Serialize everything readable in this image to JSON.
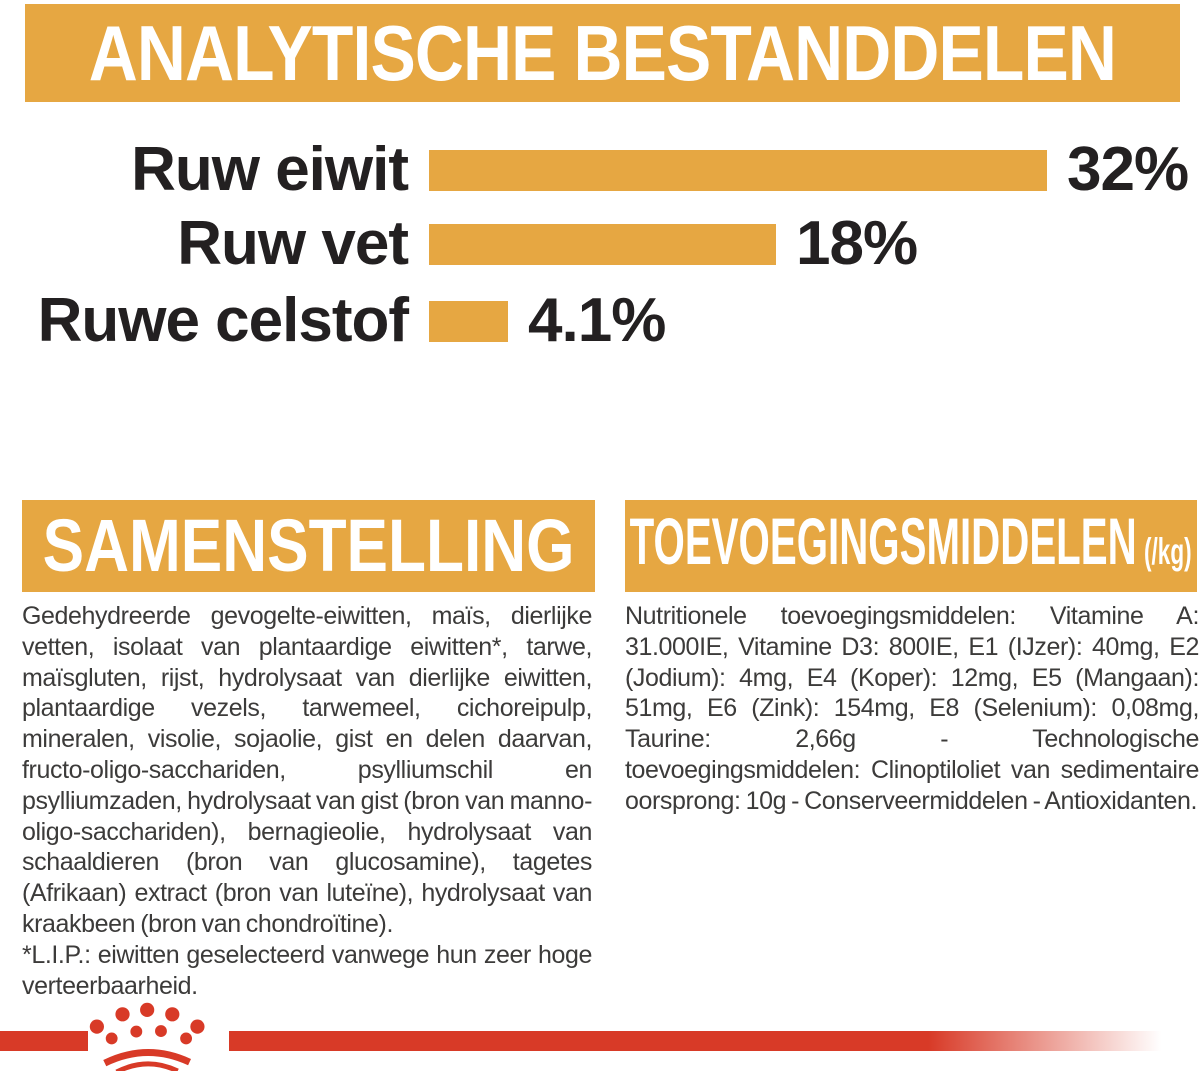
{
  "colors": {
    "gold": "#E6A742",
    "red": "#D83A27",
    "label_black": "#232021",
    "body_text": "#3C3B3A",
    "band_text_white": "#FFFFFF"
  },
  "header": {
    "title": "ANALYTISCHE BESTANDDELEN"
  },
  "chart_data": {
    "type": "bar",
    "orientation": "horizontal",
    "title": "ANALYTISCHE BESTANDDELEN",
    "categories": [
      "Ruw eiwit",
      "Ruw vet",
      "Ruwe celstof"
    ],
    "values": [
      32,
      18,
      4.1
    ],
    "value_labels": [
      "32%",
      "18%",
      "4.1%"
    ],
    "value_unit": "%",
    "xlim": [
      0,
      39
    ],
    "bar_color": "#E6A742",
    "grid": false,
    "legend": "none"
  },
  "sections": {
    "composition": {
      "title": "SAMENSTELLING",
      "body": "Gedehydreerde gevogelte-eiwitten, maïs, dierlijke vetten, isolaat van plantaardige eiwitten*, tarwe, maïsgluten, rijst, hydrolysaat van dierlijke eiwitten, plantaardige vezels, tarwemeel, cichoreipulp, mineralen, visolie, sojaolie, gist en delen daarvan, fructo-oligo-sacchariden, psylliumschil en psylliumzaden, hydrolysaat van gist (bron van manno-oligo-sacchariden), bernagieolie, hydrolysaat van schaaldieren (bron van glucosamine), tagetes (Afrikaan) extract (bron van luteïne), hydrolysaat van kraakbeen (bron van chondroïtine).",
      "footnote": "*L.I.P.: eiwitten geselecteerd vanwege hun zeer hoge verteerbaarheid."
    },
    "additives": {
      "title": "TOEVOEGINGSMIDDELEN",
      "unit": "(/kg)",
      "body": "Nutritionele toevoegingsmiddelen: Vitamine A: 31.000IE, Vitamine D3: 800IE, E1 (IJzer): 40mg, E2 (Jodium): 4mg, E4 (Koper): 12mg, E5 (Mangaan): 51mg, E6 (Zink): 154mg, E8 (Selenium): 0,08mg, Taurine: 2,66g - Technologische toevoegingsmiddelen: Clinoptiloliet van sedimentaire oorsprong: 10g - Conserveermiddelen - Antioxidanten."
    }
  },
  "footer": {
    "logo": "royal-canin-crown-logo"
  }
}
